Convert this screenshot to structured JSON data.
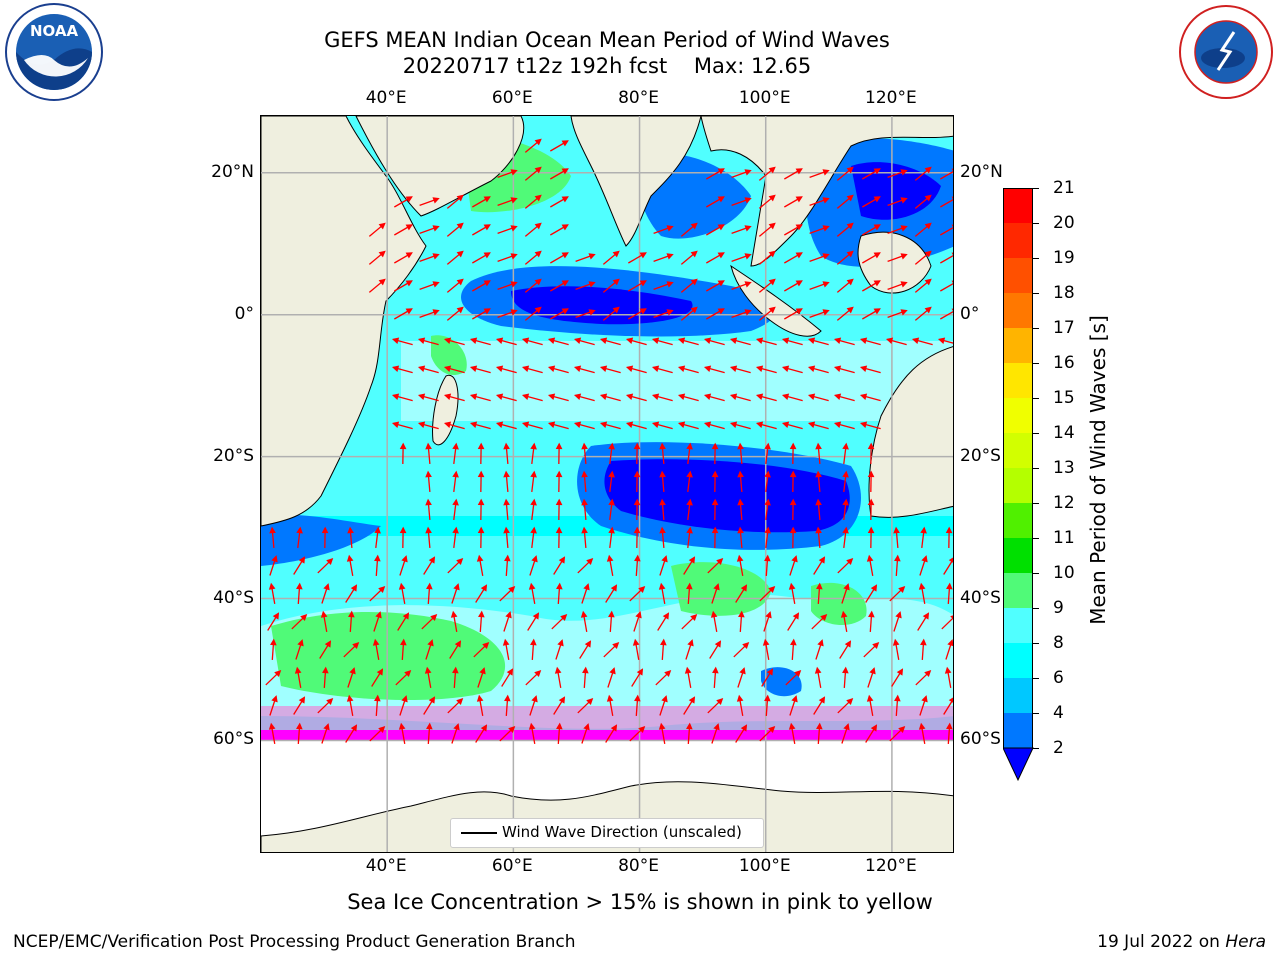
{
  "header": {
    "title_line1": "GEFS MEAN Indian Ocean Mean Period of Wind Waves",
    "title_line2": "20220717 t12z 192h fcst    Max: 12.65"
  },
  "logos": {
    "left": {
      "icon": "noaa-logo",
      "text": "NOAA",
      "ring_text": "NATIONAL OCEANIC AND ATMOSPHERIC ADMINISTRATION · U.S. DEPARTMENT OF COMMERCE"
    },
    "right": {
      "icon": "nws-logo",
      "ring_text": "NATIONAL WEATHER SERVICE"
    }
  },
  "map": {
    "lon_ticks_top": [
      "40°E",
      "60°E",
      "80°E",
      "100°E",
      "120°E"
    ],
    "lon_ticks_bottom": [
      "40°E",
      "60°E",
      "80°E",
      "100°E",
      "120°E"
    ],
    "lat_ticks_left": [
      "20°N",
      "0°",
      "20°S",
      "40°S",
      "60°S"
    ],
    "lat_ticks_right": [
      "20°N",
      "0°",
      "20°S",
      "40°S",
      "60°S"
    ],
    "lon_values": [
      40,
      60,
      80,
      100,
      120
    ],
    "lat_values": [
      20,
      0,
      -20,
      -40,
      -60
    ],
    "extent": {
      "lon_min": 20,
      "lon_max": 130,
      "lat_min": -76,
      "lat_max": 28
    },
    "land_color": "#efefdf",
    "arrow_color": "#ff0000",
    "legend_label": "Wind Wave Direction (unscaled)"
  },
  "colorbar": {
    "label": "Mean Period of Wind Waves [s]",
    "ticks": [
      "21",
      "20",
      "19",
      "18",
      "17",
      "16",
      "15",
      "14",
      "13",
      "12",
      "11",
      "10",
      "9",
      "8",
      "6",
      "4",
      "2"
    ],
    "colors": [
      "#ff0000",
      "#ff2800",
      "#ff5000",
      "#ff7800",
      "#ff9600",
      "#ffb400",
      "#ffe600",
      "#f0ff00",
      "#d2ff00",
      "#b4ff00",
      "#50f000",
      "#00e000",
      "#50fa78",
      "#a0ffff",
      "#50ffff",
      "#00ffff",
      "#00c8ff",
      "#0078ff",
      "#0000ff"
    ]
  },
  "footer": {
    "note": "Sea Ice Concentration > 15% is shown in pink to yellow",
    "left": "NCEP/EMC/Verification Post Processing Product Generation Branch",
    "right_date": "19 Jul 2022 on ",
    "right_host": "Hera"
  }
}
